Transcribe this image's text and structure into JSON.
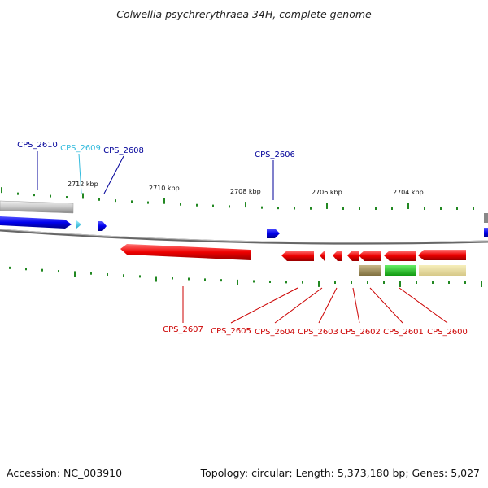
{
  "title": "Colwellia psychrerythraea 34H, complete genome",
  "footer": {
    "accession": "Accession: NC_003910",
    "topology": "Topology: circular; Length: 5,373,180 bp; Genes: 5,027"
  },
  "colors": {
    "forward_gene": "#0000ee",
    "forward_gene_selected": "#33ccee",
    "reverse_gene": "#ee0000",
    "backbone": "#777777",
    "tick": "#228822",
    "label_forward": "#000099",
    "label_selected": "#33bbdd",
    "label_reverse": "#cc0000"
  },
  "scale_labels": [
    "2712 kbp",
    "2710 kbp",
    "2708 kbp",
    "2706 kbp",
    "2704 kbp"
  ],
  "genes": [
    {
      "id": "CPS_2610",
      "strand": "forward",
      "icon": "forward-gene-arrow"
    },
    {
      "id": "CPS_2609",
      "strand": "forward",
      "icon": "forward-gene-arrow",
      "highlight": true
    },
    {
      "id": "CPS_2608",
      "strand": "forward",
      "icon": "forward-gene-arrow"
    },
    {
      "id": "CPS_2606",
      "strand": "forward",
      "icon": "forward-gene-arrow"
    },
    {
      "id": "CPS_2607",
      "strand": "reverse",
      "icon": "reverse-gene-arrow"
    },
    {
      "id": "CPS_2605",
      "strand": "reverse",
      "icon": "reverse-gene-arrow"
    },
    {
      "id": "CPS_2604",
      "strand": "reverse",
      "icon": "reverse-gene-arrow"
    },
    {
      "id": "CPS_2603",
      "strand": "reverse",
      "icon": "reverse-gene-arrow"
    },
    {
      "id": "CPS_2602",
      "strand": "reverse",
      "icon": "reverse-gene-arrow"
    },
    {
      "id": "CPS_2601",
      "strand": "reverse",
      "icon": "reverse-gene-arrow"
    },
    {
      "id": "CPS_2600",
      "strand": "reverse",
      "icon": "reverse-gene-arrow"
    }
  ]
}
